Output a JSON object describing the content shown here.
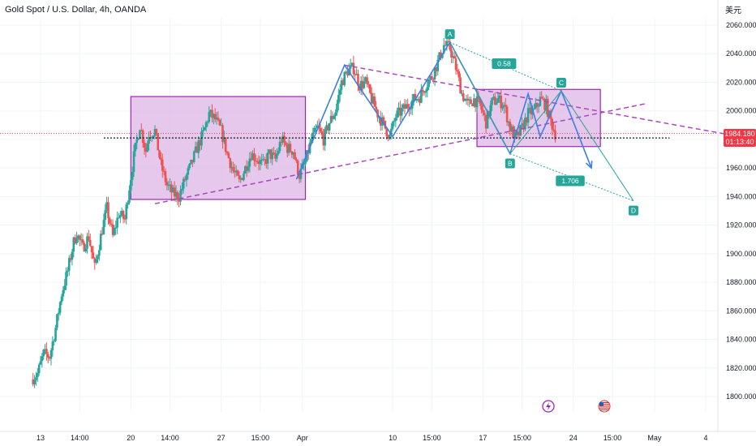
{
  "header": {
    "symbol_title": "Gold Spot / U.S. Dollar, 4h, OANDA",
    "currency_label": "美元"
  },
  "price_tag": {
    "price": "1984.180",
    "countdown": "01:13:40"
  },
  "colors": {
    "up": "#26a69a",
    "down": "#ef5350",
    "box_fill": "#e1bee7",
    "box_stroke": "#9c27b0",
    "dashed_trend": "#ab47bc",
    "wave_line": "#3d7ee8",
    "pattern_line": "#26a69a",
    "price_tag": "#f23645"
  },
  "chart_data": {
    "type": "candlestick",
    "instrument": "Gold Spot / U.S. Dollar",
    "timeframe": "4h",
    "source": "OANDA",
    "y_ticks": [
      1800,
      1820,
      1840,
      1860,
      1880,
      1900,
      1920,
      1940,
      1960,
      1980,
      2000,
      2020,
      2040,
      2060
    ],
    "y_tick_labels": [
      "1800.000",
      "1820.000",
      "1840.000",
      "1860.000",
      "1880.000",
      "1900.000",
      "1920.000",
      "1940.000",
      "1960.000",
      "1980.000",
      "2000.000",
      "2020.000",
      "2040.000",
      "2060.000"
    ],
    "ylim": [
      1790,
      2070
    ],
    "x_ticks": [
      {
        "label": "13",
        "t": 3
      },
      {
        "label": "14:00",
        "t": 16
      },
      {
        "label": "20",
        "t": 33
      },
      {
        "label": "14:00",
        "t": 46
      },
      {
        "label": "27",
        "t": 63
      },
      {
        "label": "15:00",
        "t": 76
      },
      {
        "label": "Apr",
        "t": 90
      },
      {
        "label": "10",
        "t": 120
      },
      {
        "label": "15:00",
        "t": 133
      },
      {
        "label": "17",
        "t": 150
      },
      {
        "label": "15:00",
        "t": 163
      },
      {
        "label": "24",
        "t": 180
      },
      {
        "label": "15:00",
        "t": 193
      },
      {
        "label": "May",
        "t": 207
      },
      {
        "label": "4",
        "t": 224
      }
    ],
    "current_price": 1984.18,
    "key_level": 1981,
    "candles_path": [
      [
        0,
        1812
      ],
      [
        2,
        1816
      ],
      [
        4,
        1830
      ],
      [
        6,
        1828
      ],
      [
        8,
        1848
      ],
      [
        10,
        1872
      ],
      [
        12,
        1888
      ],
      [
        14,
        1908
      ],
      [
        15,
        1914
      ],
      [
        17,
        1904
      ],
      [
        19,
        1912
      ],
      [
        21,
        1890
      ],
      [
        23,
        1912
      ],
      [
        25,
        1932
      ],
      [
        27,
        1912
      ],
      [
        29,
        1928
      ],
      [
        31,
        1924
      ],
      [
        32,
        1940
      ],
      [
        34,
        1968
      ],
      [
        36,
        1990
      ],
      [
        38,
        1972
      ],
      [
        39,
        1984
      ],
      [
        41,
        1986
      ],
      [
        43,
        1962
      ],
      [
        45,
        1948
      ],
      [
        47,
        1942
      ],
      [
        49,
        1940
      ],
      [
        51,
        1952
      ],
      [
        53,
        1962
      ],
      [
        55,
        1974
      ],
      [
        57,
        1984
      ],
      [
        59,
        1998
      ],
      [
        61,
        1994
      ],
      [
        63,
        1986
      ],
      [
        65,
        1970
      ],
      [
        67,
        1958
      ],
      [
        69,
        1950
      ],
      [
        71,
        1960
      ],
      [
        73,
        1970
      ],
      [
        75,
        1966
      ],
      [
        77,
        1962
      ],
      [
        79,
        1970
      ],
      [
        81,
        1966
      ],
      [
        83,
        1980
      ],
      [
        85,
        1974
      ],
      [
        87,
        1972
      ],
      [
        88,
        1962
      ],
      [
        89,
        1955
      ],
      [
        91,
        1964
      ],
      [
        93,
        1980
      ],
      [
        95,
        1988
      ],
      [
        97,
        1980
      ],
      [
        99,
        1992
      ],
      [
        101,
        2000
      ],
      [
        103,
        2020
      ],
      [
        105,
        2028
      ],
      [
        107,
        2030
      ],
      [
        109,
        2018
      ],
      [
        111,
        2020
      ],
      [
        113,
        2008
      ],
      [
        115,
        1998
      ],
      [
        117,
        1990
      ],
      [
        119,
        1982
      ],
      [
        121,
        1996
      ],
      [
        123,
        2000
      ],
      [
        125,
        2004
      ],
      [
        127,
        2008
      ],
      [
        129,
        2010
      ],
      [
        131,
        2018
      ],
      [
        133,
        2024
      ],
      [
        135,
        2034
      ],
      [
        137,
        2046
      ],
      [
        139,
        2044
      ],
      [
        141,
        2030
      ],
      [
        143,
        2012
      ],
      [
        145,
        2004
      ],
      [
        147,
        2008
      ],
      [
        149,
        2004
      ],
      [
        151,
        1992
      ],
      [
        153,
        2006
      ],
      [
        155,
        2008
      ],
      [
        157,
        2004
      ],
      [
        159,
        1988
      ],
      [
        161,
        1980
      ],
      [
        163,
        1988
      ],
      [
        165,
        1998
      ],
      [
        167,
        2000
      ],
      [
        169,
        2008
      ],
      [
        171,
        2004
      ],
      [
        172,
        1996
      ],
      [
        174,
        1984
      ]
    ],
    "zones": [
      {
        "t1": 33,
        "t2": 91,
        "y1": 1938,
        "y2": 2010
      },
      {
        "t1": 148,
        "t2": 189,
        "y1": 1975,
        "y2": 2015
      }
    ],
    "trendlines": [
      {
        "t1": 104,
        "y1": 2032,
        "t2": 230,
        "y2": 1984
      },
      {
        "t1": 41,
        "y1": 1935,
        "t2": 204,
        "y2": 2005
      }
    ],
    "key_level_range": [
      24,
      212
    ],
    "waves": [
      {
        "points": [
          [
            88,
            1952
          ],
          [
            104,
            2032
          ],
          [
            120,
            1982
          ],
          [
            139,
            2048
          ],
          [
            159,
            1970
          ],
          [
            165,
            2012
          ],
          [
            169,
            1982
          ],
          [
            176,
            2014
          ],
          [
            186,
            1960
          ]
        ],
        "arrow": true
      }
    ],
    "harmonic_pattern": {
      "points": [
        {
          "label": "A",
          "t": 139,
          "y": 2048
        },
        {
          "label": "B",
          "t": 159,
          "y": 1970
        },
        {
          "label": "C",
          "t": 176,
          "y": 2014
        },
        {
          "label": "D",
          "t": 200,
          "y": 1937
        }
      ],
      "ratios": [
        {
          "label": "0.58",
          "t": 157,
          "y": 2033
        },
        {
          "label": "1.706",
          "t": 179,
          "y": 1951
        }
      ]
    },
    "event_icons": [
      "flash-icon",
      "us-flag-icon"
    ]
  }
}
